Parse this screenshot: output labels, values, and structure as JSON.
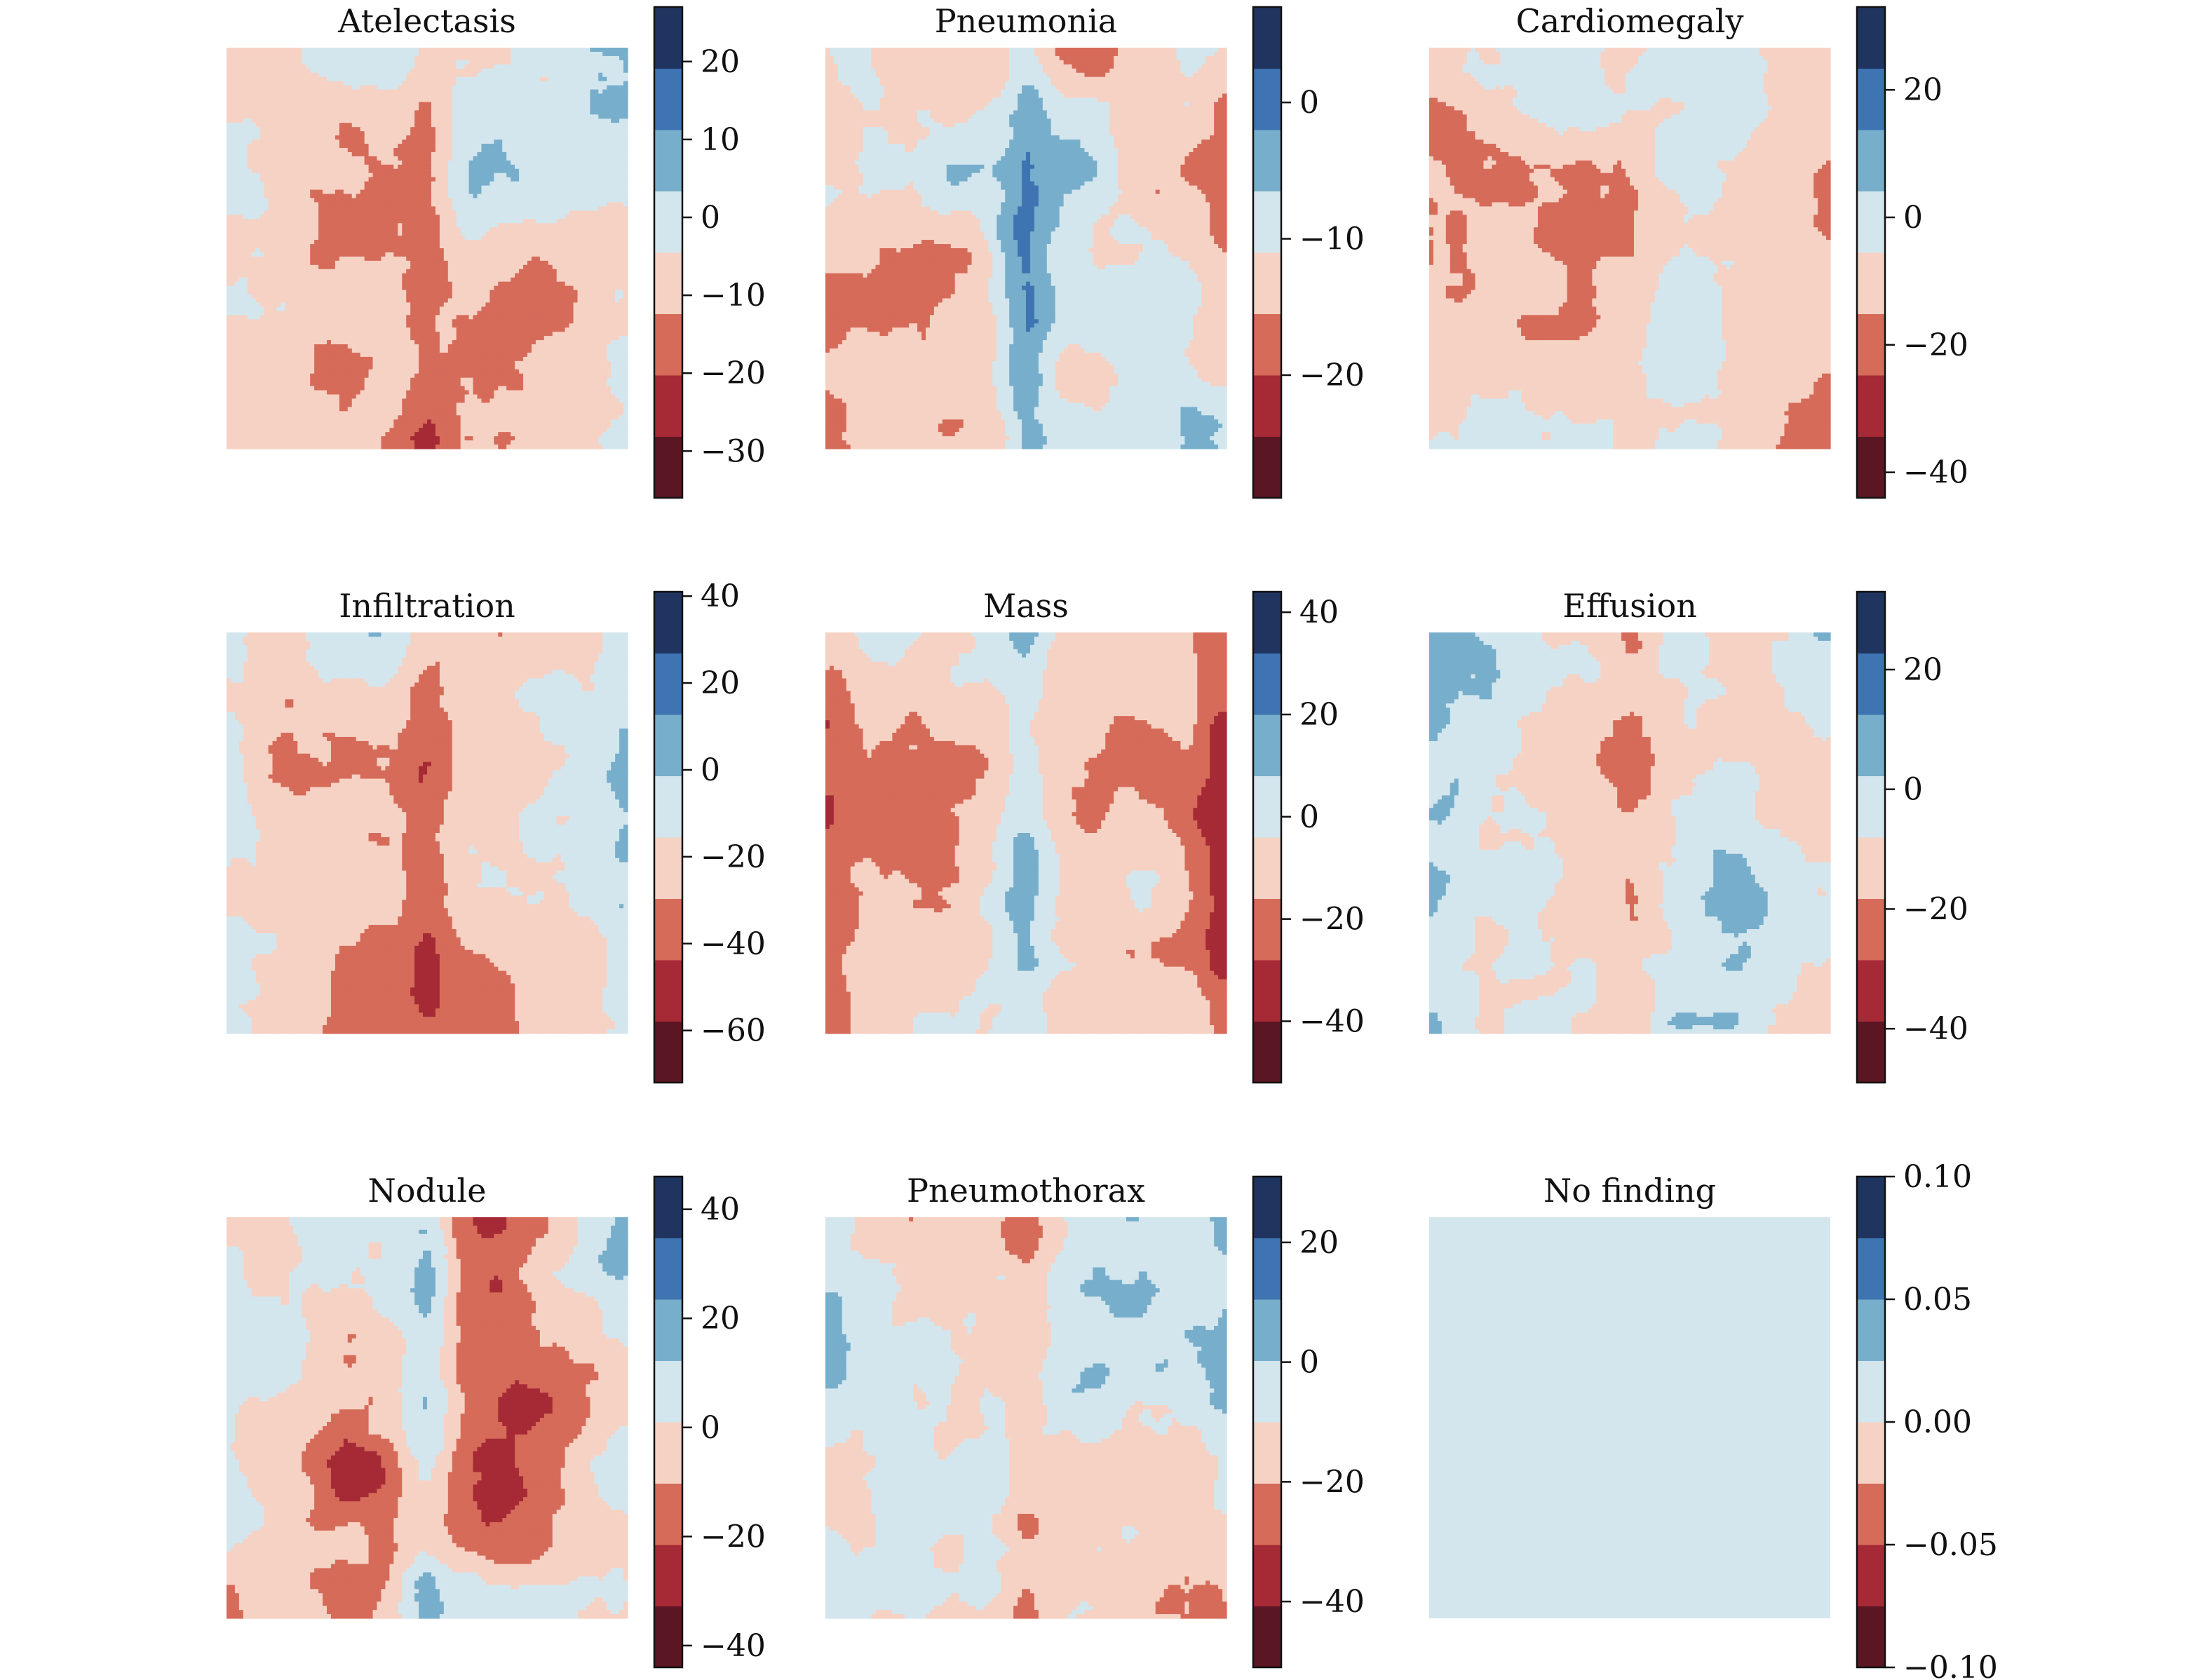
{
  "chart_data": [
    {
      "type": "heatmap",
      "title": "Atelectasis",
      "colormap": "RdBu (8 levels)",
      "colorbar": {
        "ticks": [
          20,
          10,
          0,
          -10,
          -20,
          -30
        ],
        "tick_labels": [
          "20",
          "10",
          "0",
          "−10",
          "−20",
          "−30"
        ],
        "range": [
          -36,
          27
        ]
      },
      "map_levels": [
        -30,
        20
      ]
    },
    {
      "type": "heatmap",
      "title": "Pneumonia",
      "colormap": "RdBu (8 levels)",
      "colorbar": {
        "ticks": [
          0,
          -10,
          -20
        ],
        "tick_labels": [
          "0",
          "−10",
          "−20"
        ],
        "range": [
          -29,
          7
        ]
      },
      "map_levels": [
        -25,
        5
      ]
    },
    {
      "type": "heatmap",
      "title": "Cardiomegaly",
      "colormap": "RdBu (8 levels)",
      "colorbar": {
        "ticks": [
          20,
          0,
          -20,
          -40
        ],
        "tick_labels": [
          "20",
          "0",
          "−20",
          "−40"
        ],
        "range": [
          -44,
          33
        ]
      },
      "map_levels": [
        -40,
        20
      ]
    },
    {
      "type": "heatmap",
      "title": "Infiltration",
      "colormap": "RdBu (8 levels)",
      "colorbar": {
        "ticks": [
          40,
          20,
          0,
          -20,
          -40,
          -60
        ],
        "tick_labels": [
          "40",
          "20",
          "0",
          "−20",
          "−40",
          "−60"
        ],
        "range": [
          -72,
          41
        ]
      },
      "map_levels": [
        -60,
        20
      ]
    },
    {
      "type": "heatmap",
      "title": "Mass",
      "colormap": "RdBu (8 levels)",
      "colorbar": {
        "ticks": [
          40,
          20,
          0,
          -20,
          -40
        ],
        "tick_labels": [
          "40",
          "20",
          "0",
          "−20",
          "−40"
        ],
        "range": [
          -52,
          44
        ]
      },
      "map_levels": [
        -45,
        25
      ]
    },
    {
      "type": "heatmap",
      "title": "Effusion",
      "colormap": "RdBu (8 levels)",
      "colorbar": {
        "ticks": [
          20,
          0,
          -20,
          -40
        ],
        "tick_labels": [
          "20",
          "0",
          "−20",
          "−40"
        ],
        "range": [
          -49,
          33
        ]
      },
      "map_levels": [
        -45,
        25
      ]
    },
    {
      "type": "heatmap",
      "title": "Nodule",
      "colormap": "RdBu (8 levels)",
      "colorbar": {
        "ticks": [
          40,
          20,
          0,
          -20,
          -40
        ],
        "tick_labels": [
          "40",
          "20",
          "0",
          "−20",
          "−40"
        ],
        "range": [
          -44,
          46
        ]
      },
      "map_levels": [
        -40,
        40
      ]
    },
    {
      "type": "heatmap",
      "title": "Pneumothorax",
      "colormap": "RdBu (8 levels)",
      "colorbar": {
        "ticks": [
          20,
          0,
          -20,
          -40
        ],
        "tick_labels": [
          "20",
          "0",
          "−20",
          "−40"
        ],
        "range": [
          -51,
          31
        ]
      },
      "map_levels": [
        -45,
        25
      ]
    },
    {
      "type": "heatmap",
      "title": "No finding",
      "colormap": "RdBu (8 levels)",
      "colorbar": {
        "ticks": [
          0.1,
          0.05,
          0.0,
          -0.05,
          -0.1
        ],
        "tick_labels": [
          "0.10",
          "0.05",
          "0.00",
          "−0.05",
          "−0.10"
        ],
        "range": [
          -0.1,
          0.1
        ]
      },
      "map_levels": [
        0,
        0
      ]
    }
  ],
  "colors": {
    "levels": [
      "#5a1622",
      "#a52a36",
      "#d66b5a",
      "#f6d2c4",
      "#d3e6ee",
      "#77aecb",
      "#3d74b1",
      "#1f3560"
    ],
    "ink": "#111111"
  }
}
